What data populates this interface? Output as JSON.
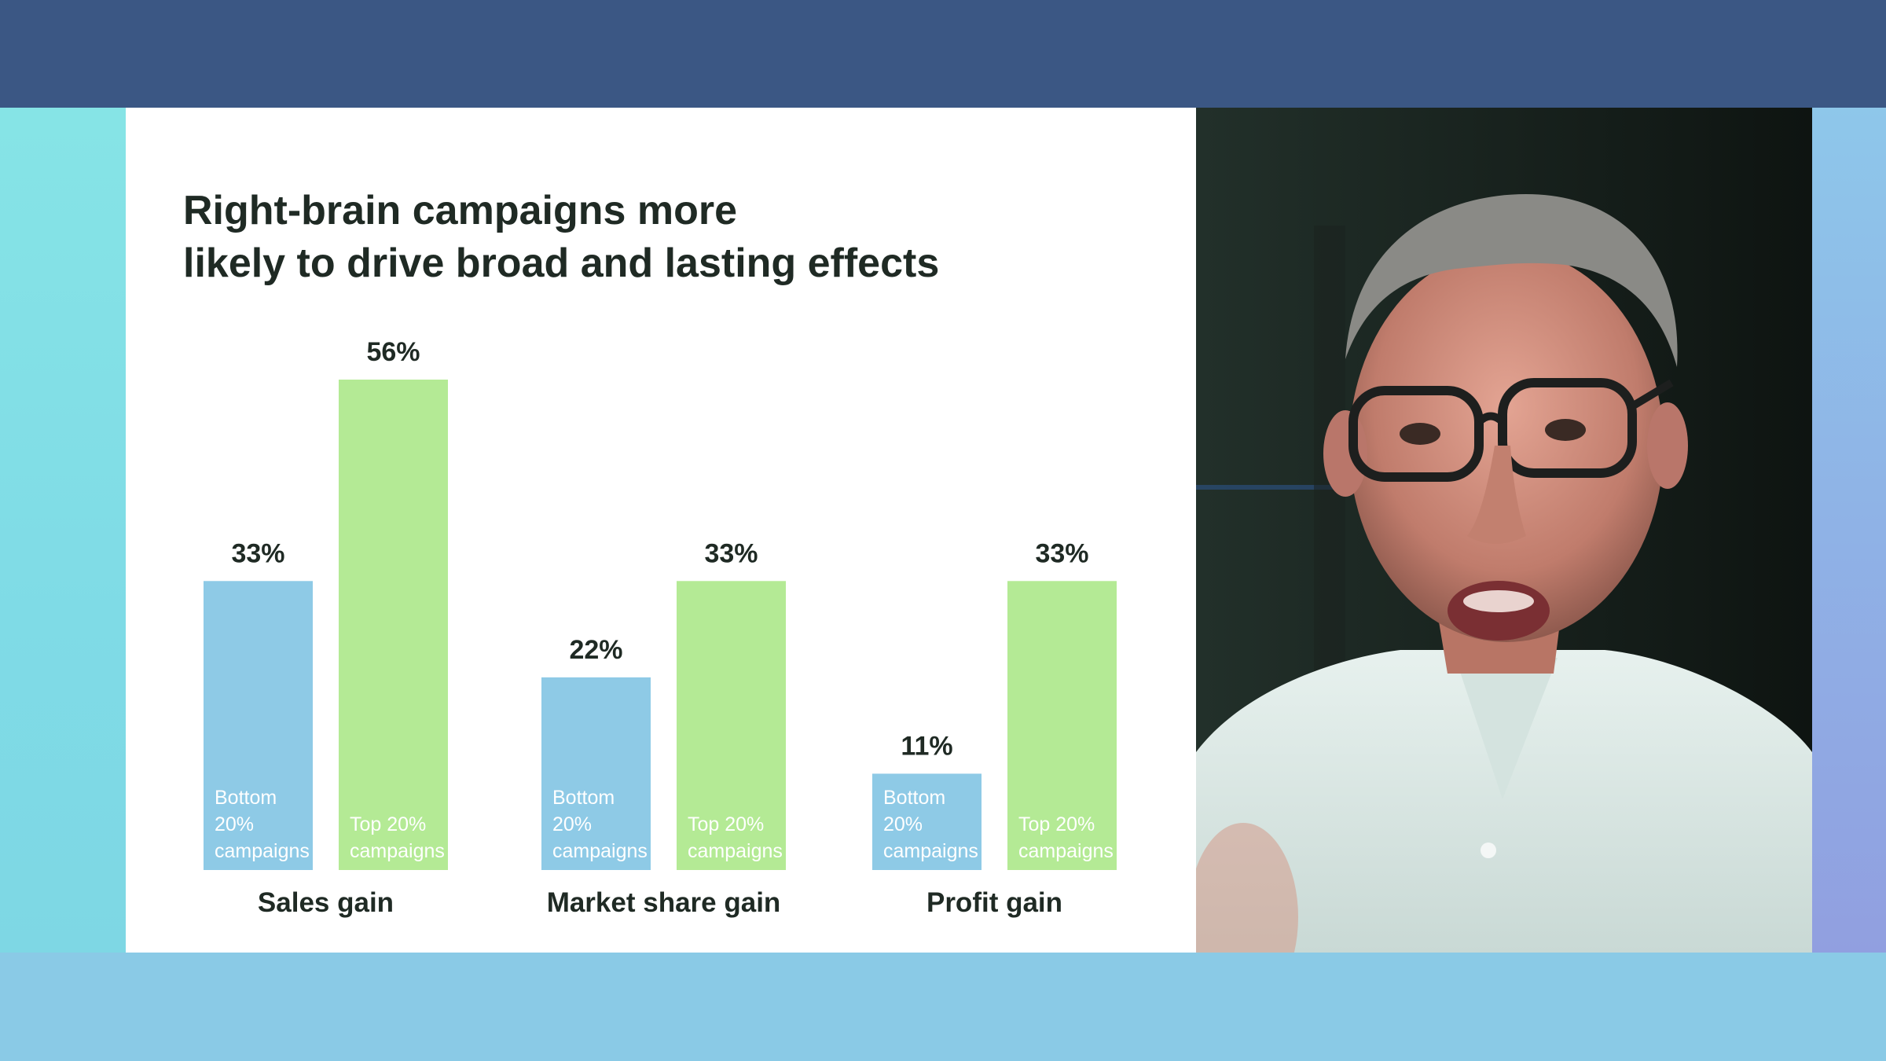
{
  "slide": {
    "title_lines": [
      "Right-brain campaigns more",
      "likely to drive broad and lasting effects"
    ]
  },
  "colors": {
    "top_band": "#3b5784",
    "bottom_band": "#8acae6",
    "bottom_bar": "#8ecae6",
    "top_bar": "#b4ea95",
    "label_text": "#1f2a24"
  },
  "chart_data": {
    "type": "bar",
    "title": "Right-brain campaigns more likely to drive broad and lasting effects",
    "categories": [
      "Sales gain",
      "Market share gain",
      "Profit gain"
    ],
    "series": [
      {
        "name": "Bottom 20% campaigns",
        "label_lines": [
          "Bottom",
          "20%",
          "campaigns"
        ],
        "values": [
          33,
          22,
          11
        ],
        "labels": [
          "33%",
          "22%",
          "11%"
        ]
      },
      {
        "name": "Top 20% campaigns",
        "label_lines": [
          "Top 20%",
          "campaigns"
        ],
        "values": [
          56,
          33,
          33
        ],
        "labels": [
          "56%",
          "33%",
          "33%"
        ]
      }
    ],
    "ylim": [
      0,
      60
    ],
    "grid": false,
    "legend": "inside-bars"
  },
  "video": {
    "subject": "presenter",
    "icon": "presenter-video-icon"
  }
}
